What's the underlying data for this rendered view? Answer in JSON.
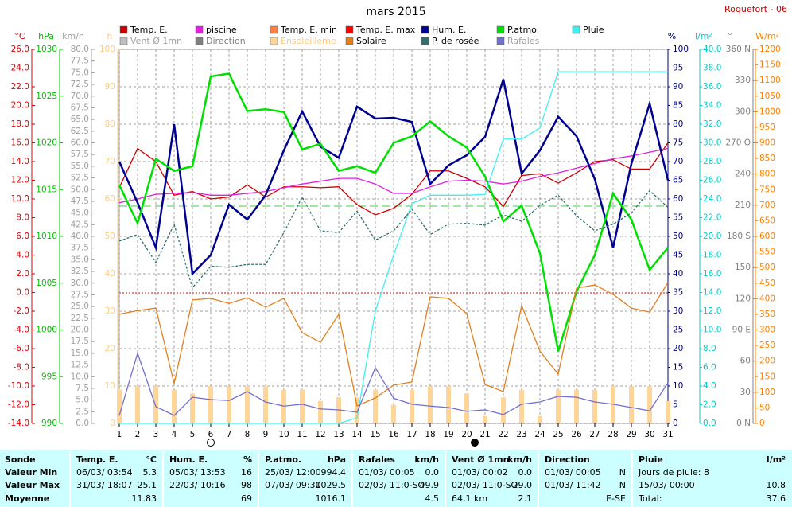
{
  "chart_data": {
    "type": "line",
    "title": "mars 2015",
    "station": "Roquefort - 06",
    "grid": true,
    "x": [
      1,
      2,
      3,
      4,
      5,
      6,
      7,
      8,
      9,
      10,
      11,
      12,
      13,
      14,
      15,
      16,
      17,
      18,
      19,
      20,
      21,
      22,
      23,
      24,
      25,
      26,
      27,
      28,
      29,
      30,
      31
    ],
    "xlim": [
      1,
      31
    ],
    "xticks": [
      1,
      2,
      3,
      4,
      5,
      6,
      7,
      8,
      9,
      10,
      11,
      12,
      13,
      14,
      15,
      16,
      17,
      18,
      19,
      20,
      21,
      22,
      23,
      24,
      25,
      26,
      27,
      28,
      29,
      30,
      31
    ],
    "ylabel": "°C",
    "ycolor": "#e00000",
    "ylim": [
      -14,
      26
    ],
    "yticks": [
      {
        "value": -14,
        "label": "-14.0"
      },
      {
        "value": -12,
        "label": "-12.0"
      },
      {
        "value": -10,
        "label": "-10.0"
      },
      {
        "value": -8,
        "label": "-8.0"
      },
      {
        "value": -6,
        "label": "-6.0"
      },
      {
        "value": -4,
        "label": "-4.0"
      },
      {
        "value": -2,
        "label": "-2.0"
      },
      {
        "value": 0,
        "label": "0.0"
      },
      {
        "value": 2,
        "label": "2.0"
      },
      {
        "value": 4,
        "label": "4.0"
      },
      {
        "value": 6,
        "label": "6.0"
      },
      {
        "value": 8,
        "label": "8.0"
      },
      {
        "value": 10,
        "label": "10.0"
      },
      {
        "value": 12,
        "label": "12.0"
      },
      {
        "value": 14,
        "label": "14.0"
      },
      {
        "value": 16,
        "label": "16.0"
      },
      {
        "value": 18,
        "label": "18.0"
      },
      {
        "value": 20,
        "label": "20.0"
      },
      {
        "value": 22,
        "label": "22.0"
      },
      {
        "value": 24,
        "label": "24.0"
      },
      {
        "value": 26,
        "label": "26.0"
      }
    ],
    "y2label": "hPa",
    "y2color": "#00c000",
    "y2lim": [
      990,
      1030
    ],
    "y2ticks": [
      990,
      995,
      1000,
      1005,
      1010,
      1015,
      1020,
      1025,
      1030
    ],
    "y3label": "km/h",
    "y3color": "#a0a0a0",
    "y3lim": [
      0,
      80
    ],
    "y3ticks": [
      {
        "value": 0,
        "label": "0.0"
      },
      2.5,
      {
        "value": 5,
        "label": "5.0"
      },
      7.5,
      {
        "value": 10,
        "label": "10.0"
      },
      12.5,
      {
        "value": 15,
        "label": "15.0"
      },
      17.5,
      {
        "value": 20,
        "label": "20.0"
      },
      22.5,
      {
        "value": 25,
        "label": "25.0"
      },
      27.5,
      {
        "value": 30,
        "label": "30.0"
      },
      32.5,
      {
        "value": 35,
        "label": "35.0"
      },
      37.5,
      {
        "value": 40,
        "label": "40.0"
      },
      42.5,
      {
        "value": 45,
        "label": "45.0"
      },
      47.5,
      {
        "value": 50,
        "label": "50.0"
      },
      52.5,
      {
        "value": 55,
        "label": "55.0"
      },
      57.5,
      {
        "value": 60,
        "label": "60.0"
      },
      62.5,
      {
        "value": 65,
        "label": "65.0"
      },
      67.5,
      {
        "value": 70,
        "label": "70.0"
      },
      72.5,
      {
        "value": 75,
        "label": "75.0"
      },
      77.5,
      {
        "value": 80,
        "label": "80.0"
      }
    ],
    "y4label": "h",
    "y4color": "#ffcc80",
    "y4lim": [
      0,
      100
    ],
    "y4ticks": [
      0,
      10,
      20,
      30,
      40,
      50,
      60,
      70,
      80,
      90,
      100
    ],
    "y5label": "%",
    "y5color": "#000080",
    "y5lim": [
      0,
      100
    ],
    "y5ticks": [
      0,
      5,
      10,
      15,
      20,
      25,
      30,
      35,
      40,
      45,
      50,
      55,
      60,
      65,
      70,
      75,
      80,
      85,
      90,
      95,
      100
    ],
    "y6label": "l/m²",
    "y6color": "#00cccc",
    "y6lim": [
      0,
      40
    ],
    "y6ticks": [
      {
        "value": 0,
        "label": "0.0"
      },
      {
        "value": 2,
        "label": "2.0"
      },
      {
        "value": 4,
        "label": "4.0"
      },
      {
        "value": 6,
        "label": "6.0"
      },
      {
        "value": 8,
        "label": "8.0"
      },
      {
        "value": 10,
        "label": "10.0"
      },
      {
        "value": 12,
        "label": "12.0"
      },
      {
        "value": 14,
        "label": "14.0"
      },
      {
        "value": 16,
        "label": "16.0"
      },
      {
        "value": 18,
        "label": "18.0"
      },
      {
        "value": 20,
        "label": "20.0"
      },
      {
        "value": 22,
        "label": "22.0"
      },
      {
        "value": 24,
        "label": "24.0"
      },
      {
        "value": 26,
        "label": "26.0"
      },
      {
        "value": 28,
        "label": "28.0"
      },
      {
        "value": 30,
        "label": "30.0"
      },
      {
        "value": 32,
        "label": "32.0"
      },
      {
        "value": 34,
        "label": "34.0"
      },
      {
        "value": 36,
        "label": "36.0"
      },
      {
        "value": 38,
        "label": "38.0"
      },
      {
        "value": 40,
        "label": "40.0"
      }
    ],
    "y7label": "°",
    "y7color": "#808080",
    "y7lim": [
      0,
      360
    ],
    "y7ticks": [
      {
        "value": 0,
        "label": "0 N"
      },
      30,
      60,
      {
        "value": 90,
        "label": "90 E"
      },
      120,
      150,
      {
        "value": 180,
        "label": "180 S"
      },
      210,
      240,
      {
        "value": 270,
        "label": "270 O"
      },
      300,
      330,
      {
        "value": 360,
        "label": "360 N"
      }
    ],
    "y8label": "W/m²",
    "y8color": "#ff8000",
    "y8lim": [
      0,
      1200
    ],
    "y8ticks": [
      0,
      50,
      100,
      150,
      200,
      250,
      300,
      350,
      400,
      450,
      500,
      550,
      600,
      650,
      700,
      750,
      800,
      850,
      900,
      950,
      1000,
      1050,
      1100,
      1150,
      1200
    ],
    "series": [
      {
        "name": "Temp. E.",
        "color": "#cc0000",
        "axis": "y",
        "style": "line",
        "values": [
          11.2,
          15.4,
          14,
          10.4,
          10.8,
          10,
          10.2,
          11.5,
          10.2,
          11.3,
          11.3,
          11.2,
          11.3,
          9.4,
          8.3,
          9,
          10.5,
          13,
          13,
          12.2,
          11.3,
          9.2,
          12.5,
          12.7,
          11.7,
          12.8,
          14,
          14.2,
          13.2,
          13.2,
          16
        ]
      },
      {
        "name": "piscine",
        "color": "#e020e0",
        "axis": "y",
        "style": "line",
        "values": [
          9.6,
          10,
          10.5,
          10.6,
          10.7,
          10.4,
          10.4,
          10.6,
          10.8,
          11.2,
          11.6,
          11.9,
          12.2,
          12.2,
          11.6,
          10.6,
          10.6,
          11.3,
          11.9,
          12,
          11.9,
          11.6,
          11.9,
          12.4,
          12.8,
          13.3,
          13.8,
          14.3,
          14.6,
          15,
          15.4
        ]
      },
      {
        "name": "Temp. E. min",
        "color": "#ff8040"
      },
      {
        "name": "Temp. E. max",
        "color": "#ff0000"
      },
      {
        "name": "Hum. E.",
        "color": "#000090",
        "axis": "y5",
        "style": "line",
        "width": 2.5,
        "values": [
          70,
          59,
          47,
          80,
          40,
          45,
          58.5,
          54.5,
          61,
          73,
          83.4,
          74,
          71,
          84.7,
          81.5,
          81.7,
          80.6,
          64,
          69,
          71.7,
          76.6,
          92,
          66.8,
          73,
          82,
          76.8,
          65.3,
          47,
          69.4,
          85.5,
          65
        ]
      },
      {
        "name": "P.atmo.",
        "color": "#00e000",
        "axis": "y2",
        "style": "line",
        "width": 2.5,
        "values": [
          1015.5,
          1011.4,
          1018.3,
          1017,
          1017.5,
          1027.1,
          1027.4,
          1023.4,
          1023.6,
          1023.3,
          1019.3,
          1019.9,
          1017,
          1017.5,
          1016.8,
          1020,
          1020.7,
          1022.3,
          1020.7,
          1019.5,
          1016.4,
          1011.6,
          1013.3,
          1008.2,
          997.7,
          1004.1,
          1008,
          1014.6,
          1011.8,
          1006.4,
          1008.8
        ]
      },
      {
        "name": "Pluie",
        "color": "#40f0f0",
        "axis": "y6",
        "style": "line",
        "values": [
          0,
          0,
          0,
          0,
          0,
          0,
          0,
          0,
          0,
          0,
          0,
          0,
          0,
          0.6,
          12,
          18,
          23.5,
          24.4,
          24.4,
          24.4,
          24.5,
          30.4,
          30.4,
          31.6,
          37.6,
          37.6,
          37.6,
          37.6,
          37.6,
          37.6,
          37.6
        ]
      },
      {
        "name": "Vent Ø 1mn",
        "color": "#c0c0c0",
        "label_color": "#a0a0a0"
      },
      {
        "name": "Direction",
        "color": "#808080",
        "label_color": "#808080"
      },
      {
        "name": "Ensoleilleme",
        "color": "#ffd59a",
        "label_color": "#ffc880",
        "axis": "y4",
        "style": "bar",
        "values": [
          9,
          10,
          10,
          9,
          8,
          10,
          10,
          10,
          10,
          9,
          9,
          6,
          7,
          7,
          9,
          5,
          9,
          10,
          10,
          8,
          2,
          7,
          9,
          2,
          9,
          9,
          9,
          10,
          10,
          10,
          6
        ]
      },
      {
        "name": "Solaire",
        "color": "#e08020",
        "axis": "y8",
        "style": "line",
        "values": [
          350,
          362,
          370,
          128,
          396,
          401,
          385,
          403,
          373,
          401,
          291,
          260,
          350,
          56,
          82,
          123,
          133,
          406,
          401,
          352,
          125,
          102,
          378,
          232,
          158,
          434,
          444,
          414,
          370,
          357,
          452
        ]
      },
      {
        "name": "P. de rosée",
        "color": "#2f6f6f",
        "axis": "y",
        "style": "line",
        "dashed": true,
        "values": [
          5.5,
          6.2,
          3.2,
          7.3,
          0.5,
          2.8,
          2.7,
          3,
          3,
          6.4,
          10.2,
          6.6,
          6.4,
          8.7,
          5.6,
          6.6,
          8.9,
          6.2,
          7.3,
          7.4,
          7.2,
          8.3,
          7.6,
          9.3,
          10.4,
          8.2,
          6.6,
          7.3,
          8.5,
          10.9,
          9.1
        ]
      },
      {
        "name": "Rafales",
        "color": "#7070d0",
        "label_color": "#a0a0a0",
        "axis": "y3",
        "style": "line",
        "values": [
          1.7,
          15,
          3.6,
          1.7,
          5.6,
          5.1,
          4.9,
          6.8,
          4.6,
          3.7,
          4.1,
          3.1,
          2.9,
          2.4,
          11.9,
          5.4,
          4.1,
          3.7,
          3.4,
          2.6,
          2.9,
          1.9,
          4.1,
          4.6,
          5.8,
          5.6,
          4.6,
          4.1,
          3.4,
          2.7,
          8.7
        ]
      }
    ]
  },
  "stats": {
    "row_labels": [
      "Sonde",
      "Valeur Min",
      "Valeur Max",
      "Moyenne"
    ],
    "columns": [
      {
        "header": {
          "left": "Temp. E.",
          "right": "°C"
        },
        "cells": [
          {
            "left": "06/03/ 03:54",
            "right": "5.3"
          },
          {
            "left": "31/03/ 18:07",
            "right": "25.1"
          },
          {
            "right": "11.83"
          }
        ]
      },
      {
        "header": {
          "left": "Hum. E.",
          "right": "%"
        },
        "cells": [
          {
            "left": "05/03/ 13:53",
            "right": "16"
          },
          {
            "left": "22/03/ 10:16",
            "right": "98"
          },
          {
            "right": "69"
          }
        ]
      },
      {
        "header": {
          "left": "P.atmo.",
          "right": "hPa"
        },
        "cells": [
          {
            "left": "25/03/ 12:00",
            "right": "994.4"
          },
          {
            "left": "07/03/ 09:30",
            "right": "1029.5"
          },
          {
            "right": "1016.1"
          }
        ]
      },
      {
        "header": {
          "left": "Rafales",
          "right": "km/h"
        },
        "cells": [
          {
            "left": "01/03/ 00:05",
            "right": "0.0"
          },
          {
            "left": "02/03/ 11:0-SO",
            "right": "49.9"
          },
          {
            "right": "4.5"
          }
        ]
      },
      {
        "header": {
          "left": "Vent Ø 1mn",
          "right": "km/h"
        },
        "cells": [
          {
            "left": "01/03/ 00:02",
            "right": "0.0"
          },
          {
            "left": "02/03/ 11:0-SO",
            "right": "29.0"
          },
          {
            "left": "64,1 km",
            "right": "2.1"
          }
        ]
      },
      {
        "header": {
          "left": "Direction"
        },
        "cells": [
          {
            "left": "01/03/ 00:05",
            "right": "N"
          },
          {
            "left": "01/03/ 11:42",
            "right": "N"
          },
          {
            "right": "E-SE"
          }
        ]
      },
      {
        "header": {
          "left": "Pluie",
          "right": "l/m²"
        },
        "cells": [
          {
            "left": "Jours de pluie: 8"
          },
          {
            "left": "15/03/ 00:00",
            "right": "10.8"
          },
          {
            "left": "Total:",
            "right": "37.6"
          }
        ]
      }
    ]
  }
}
